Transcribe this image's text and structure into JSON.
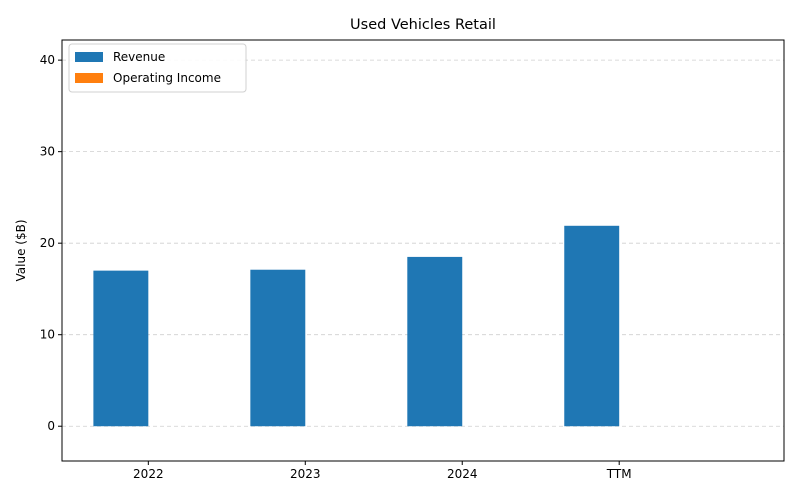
{
  "chart_data": {
    "type": "bar",
    "title": "Used Vehicles Retail",
    "xlabel": "",
    "ylabel": "Value ($B)",
    "categories": [
      "2022",
      "2023",
      "2024",
      "TTM"
    ],
    "series": [
      {
        "name": "Revenue",
        "values": [
          17.0,
          17.1,
          18.5,
          21.9
        ],
        "color": "#1f77b4"
      },
      {
        "name": "Operating Income",
        "values": [
          0,
          0,
          0,
          0
        ],
        "color": "#ff7f0e"
      }
    ],
    "ylim": [
      -3.8,
      42.2
    ],
    "yticks": [
      0,
      10,
      20,
      30,
      40
    ],
    "grid": true,
    "legend": "top-left"
  }
}
